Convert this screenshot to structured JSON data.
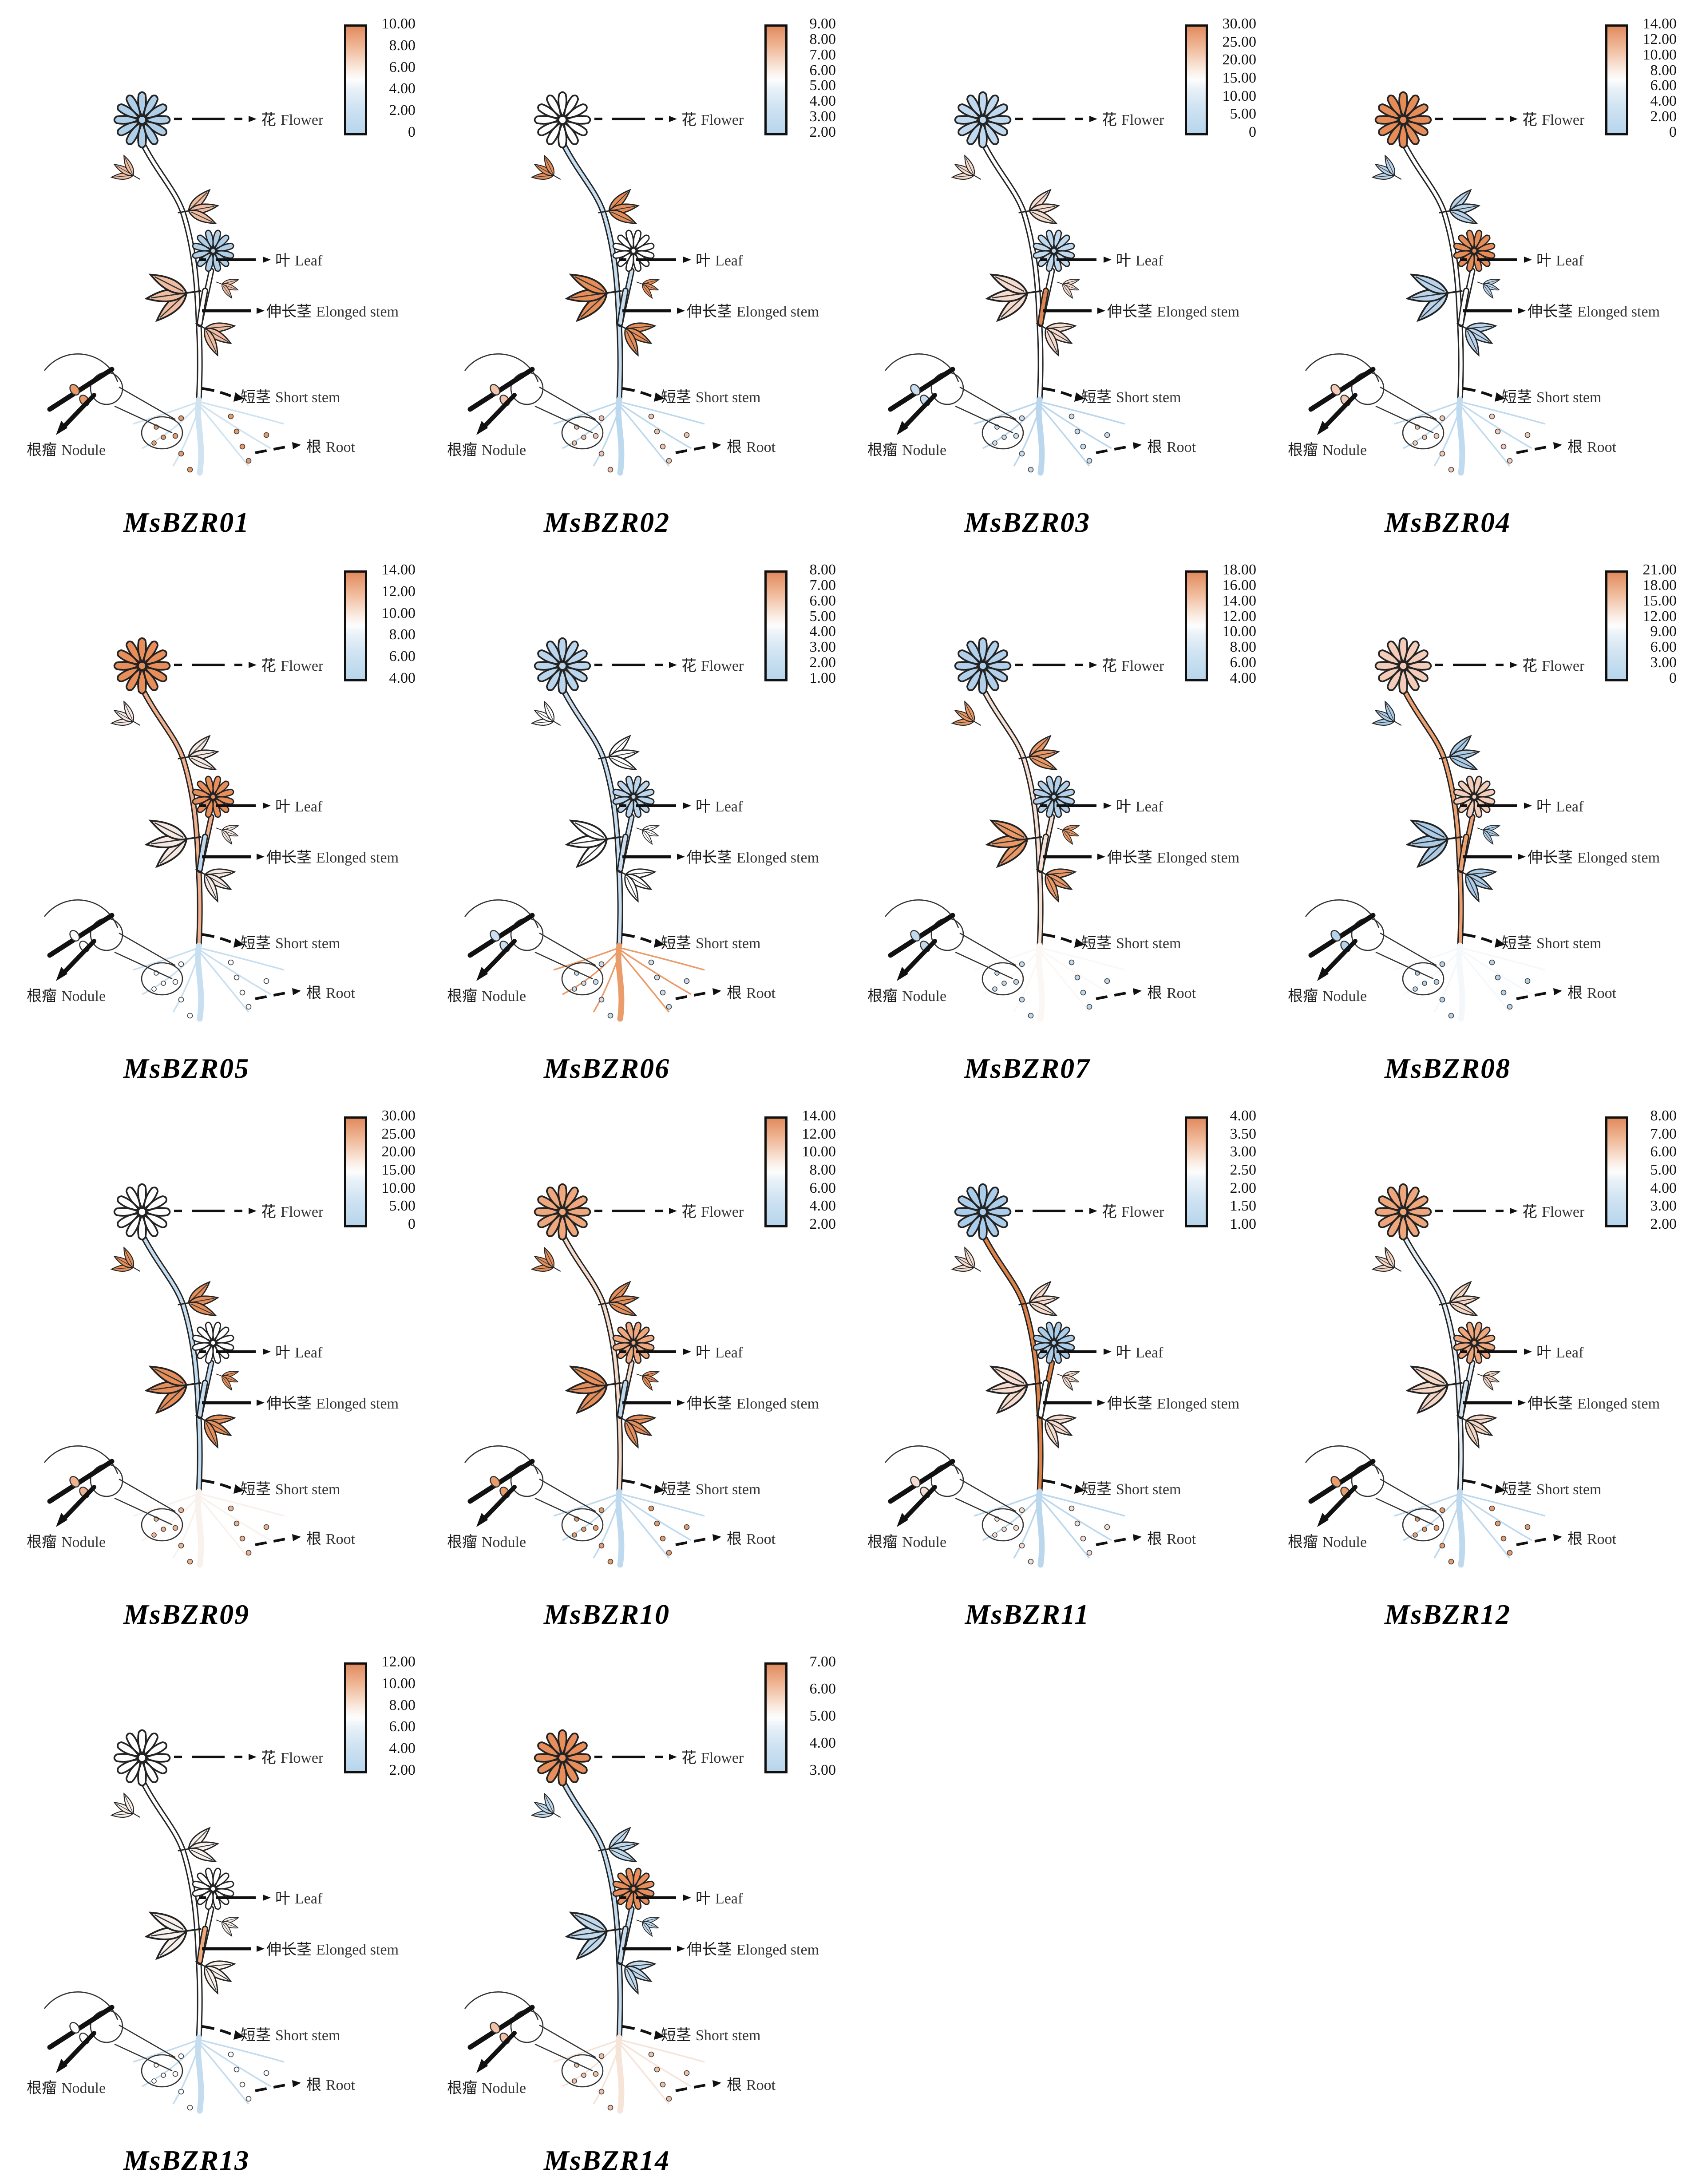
{
  "labels": {
    "flower_zh": "花",
    "flower_en": "Flower",
    "leaf_zh": "叶",
    "leaf_en": "Leaf",
    "elong_zh": "伸长茎",
    "elong_en": "Elonged stem",
    "short_zh": "短茎",
    "short_en": "Short stem",
    "nodule_zh": "根瘤",
    "nodule_en": "Nodule",
    "root_zh": "根",
    "root_en": "Root"
  },
  "colorbar": {
    "top_color": "#E18B5F",
    "mid_color": "#FDFDFD",
    "bottom_color": "#B7D5EC",
    "border_color": "#101010",
    "position": "top-right"
  },
  "chart_data": {
    "type": "heatmap",
    "tissues": [
      "花 Flower",
      "叶 Leaf",
      "伸长茎 Elonged stem",
      "短茎 Short stem",
      "根瘤 Nodule",
      "根 Root"
    ],
    "panels": [
      {
        "gene": "MsBZR01",
        "colorbar_ticks": [
          "10.00",
          "8.00",
          "6.00",
          "4.00",
          "2.00",
          "0"
        ],
        "tissue_colors": {
          "flower": "#AFCFE9",
          "leaf": "#F1BDA2",
          "elongated_stem": "#FEFDFC",
          "short_stem": "#FEFDFC",
          "root": "#CFE3F1",
          "nodule": "#E89B68"
        }
      },
      {
        "gene": "MsBZR02",
        "colorbar_ticks": [
          "9.00",
          "8.00",
          "7.00",
          "6.00",
          "5.00",
          "4.00",
          "3.00",
          "2.00"
        ],
        "tissue_colors": {
          "flower": "#FFFFFF",
          "leaf": "#E78E58",
          "elongated_stem": "#C7DEF0",
          "short_stem": "#C7DEF0",
          "root": "#BDD9EE",
          "nodule": "#F2C4AC"
        }
      },
      {
        "gene": "MsBZR03",
        "colorbar_ticks": [
          "30.00",
          "25.00",
          "20.00",
          "15.00",
          "10.00",
          "5.00",
          "0"
        ],
        "tissue_colors": {
          "flower": "#C0D9EE",
          "leaf": "#F5DCCE",
          "elongated_stem": "#E08550",
          "short_stem": "#FDFDFD",
          "root": "#BBD7ED",
          "nodule": "#C9DFF1"
        }
      },
      {
        "gene": "MsBZR04",
        "colorbar_ticks": [
          "14.00",
          "12.00",
          "10.00",
          "8.00",
          "6.00",
          "4.00",
          "2.00",
          "0"
        ],
        "tissue_colors": {
          "flower": "#E58C59",
          "leaf": "#B9D4EC",
          "elongated_stem": "#FDFDFD",
          "short_stem": "#FDFDFD",
          "root": "#C0DBEF",
          "nodule": "#F4CBB8"
        }
      },
      {
        "gene": "MsBZR05",
        "colorbar_ticks": [
          "14.00",
          "12.00",
          "10.00",
          "8.00",
          "6.00",
          "4.00"
        ],
        "tissue_colors": {
          "flower": "#E78E5B",
          "leaf": "#F6E9E3",
          "elongated_stem": "#BED9ED",
          "short_stem": "#EFB08D",
          "root": "#C8DFF1",
          "nodule": "#FDFDFD"
        }
      },
      {
        "gene": "MsBZR06",
        "colorbar_ticks": [
          "8.00",
          "7.00",
          "6.00",
          "5.00",
          "4.00",
          "3.00",
          "2.00",
          "1.00"
        ],
        "tissue_colors": {
          "flower": "#BBD6EC",
          "leaf": "#FEFEFE",
          "elongated_stem": "#C8DEF0",
          "short_stem": "#C8DEF0",
          "root": "#EB9C6B",
          "nodule": "#CADFF1"
        }
      },
      {
        "gene": "MsBZR07",
        "colorbar_ticks": [
          "18.00",
          "16.00",
          "14.00",
          "12.00",
          "10.00",
          "8.00",
          "6.00",
          "4.00"
        ],
        "tissue_colors": {
          "flower": "#B2D0EA",
          "leaf": "#EA9865",
          "elongated_stem": "#F6E0D3",
          "short_stem": "#F6E0D3",
          "root": "#FBF7F4",
          "nodule": "#C0D9EE"
        }
      },
      {
        "gene": "MsBZR08",
        "colorbar_ticks": [
          "21.00",
          "18.00",
          "15.00",
          "12.00",
          "9.00",
          "6.00",
          "3.00",
          "0"
        ],
        "tissue_colors": {
          "flower": "#F3CDBA",
          "leaf": "#ABCCE8",
          "elongated_stem": "#EC9F6F",
          "short_stem": "#EC9F6F",
          "root": "#F4F8FB",
          "nodule": "#B5D3EB"
        }
      },
      {
        "gene": "MsBZR09",
        "colorbar_ticks": [
          "30.00",
          "25.00",
          "20.00",
          "15.00",
          "10.00",
          "5.00",
          "0"
        ],
        "tissue_colors": {
          "flower": "#FFFFFF",
          "leaf": "#E78F5B",
          "elongated_stem": "#C4DCEF",
          "short_stem": "#C4DCEF",
          "root": "#F8F1EC",
          "nodule": "#EFB390"
        }
      },
      {
        "gene": "MsBZR10",
        "colorbar_ticks": [
          "14.00",
          "12.00",
          "10.00",
          "8.00",
          "6.00",
          "4.00",
          "2.00"
        ],
        "tissue_colors": {
          "flower": "#EFA87D",
          "leaf": "#E78F5B",
          "elongated_stem": "#BED9ED",
          "short_stem": "#F5DBCB",
          "root": "#BFDAEE",
          "nodule": "#E89C6A"
        }
      },
      {
        "gene": "MsBZR11",
        "colorbar_ticks": [
          "4.00",
          "3.50",
          "3.00",
          "2.50",
          "2.00",
          "1.50",
          "1.00"
        ],
        "tissue_colors": {
          "flower": "#ACCDE9",
          "leaf": "#F6DDD0",
          "elongated_stem": "#FDFDFD",
          "short_stem": "#DE8347",
          "root": "#BBD7ED",
          "nodule": "#F6DED2"
        }
      },
      {
        "gene": "MsBZR12",
        "colorbar_ticks": [
          "8.00",
          "7.00",
          "6.00",
          "5.00",
          "4.00",
          "3.00",
          "2.00"
        ],
        "tissue_colors": {
          "flower": "#EEA67C",
          "leaf": "#F5D7C6",
          "elongated_stem": "#D5E4F1",
          "short_stem": "#E3EDF6",
          "root": "#BED9EE",
          "nodule": "#E89D6B"
        }
      },
      {
        "gene": "MsBZR13",
        "colorbar_ticks": [
          "12.00",
          "10.00",
          "8.00",
          "6.00",
          "4.00",
          "2.00"
        ],
        "tissue_colors": {
          "flower": "#FEFEFE",
          "leaf": "#F8F0EB",
          "elongated_stem": "#EFA97D",
          "short_stem": "#FDFDFD",
          "root": "#C4DCEF",
          "nodule": "#FDFDFD"
        }
      },
      {
        "gene": "MsBZR14",
        "colorbar_ticks": [
          "7.00",
          "6.00",
          "5.00",
          "4.00",
          "3.00"
        ],
        "tissue_colors": {
          "flower": "#E78E5B",
          "leaf": "#BFDAEE",
          "elongated_stem": "#C4DCEF",
          "short_stem": "#C4DCEF",
          "root": "#F6E4D9",
          "nodule": "#F2C0A5"
        }
      }
    ]
  }
}
